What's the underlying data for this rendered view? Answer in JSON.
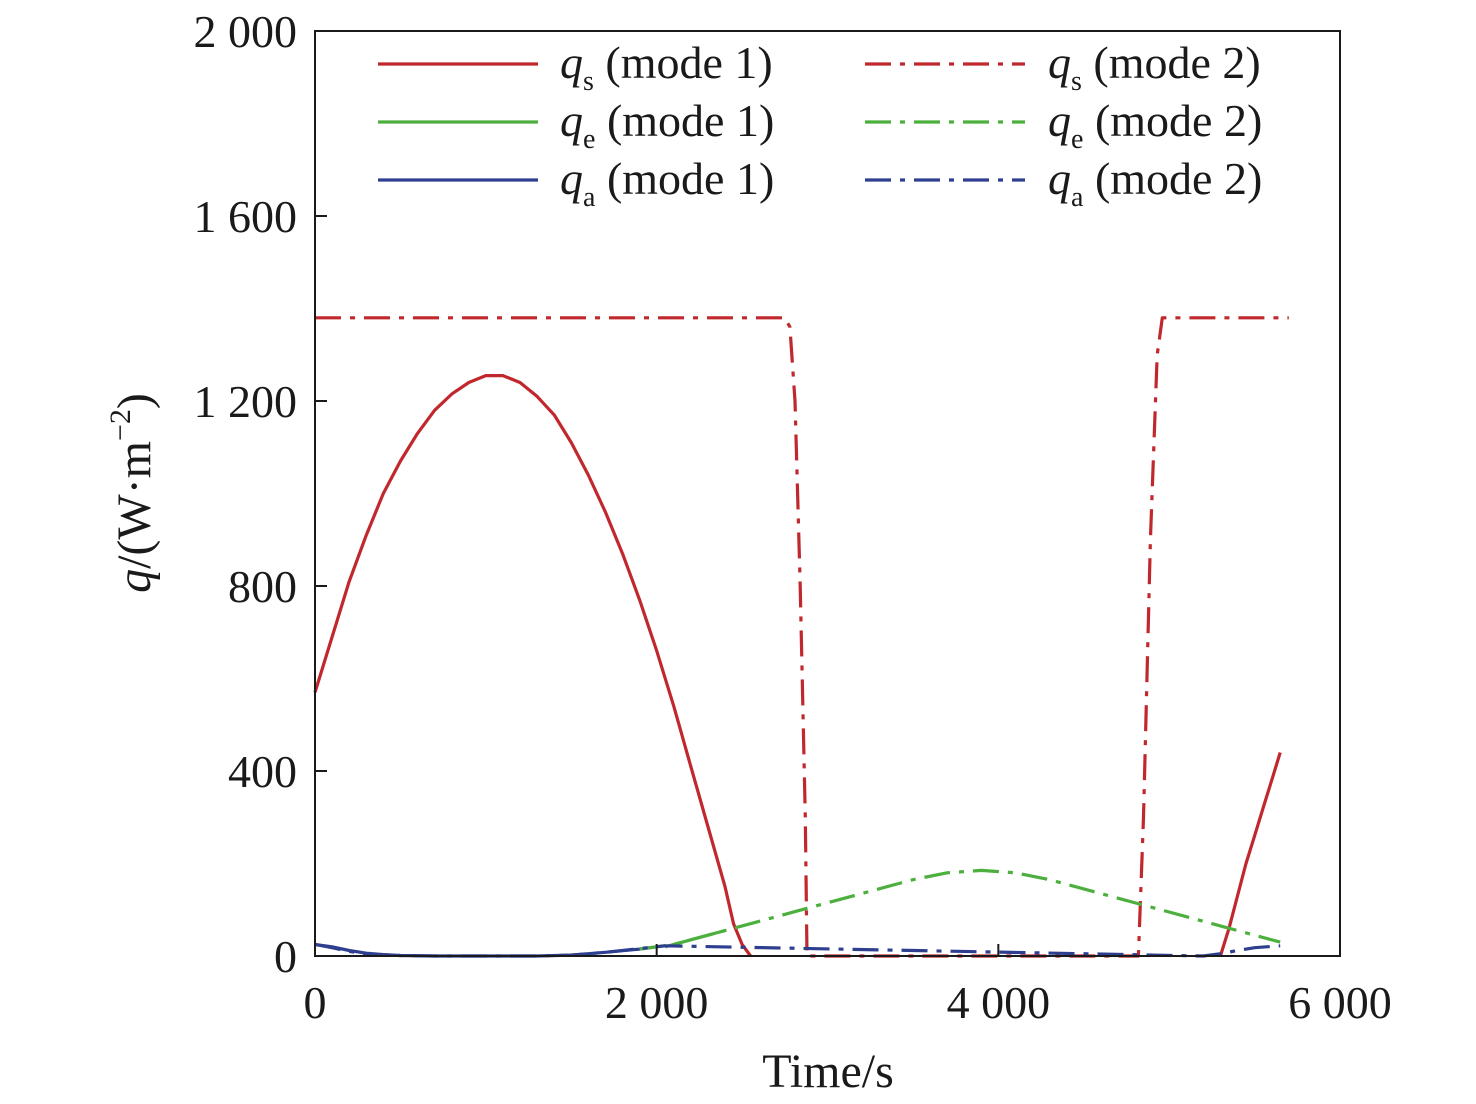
{
  "chart_data": {
    "type": "line",
    "title": "",
    "xlabel": "Time/s",
    "ylabel": {
      "symbol": "q",
      "rest": "/(W·m",
      "sup": "−2",
      "close": ")"
    },
    "xlim": [
      0,
      6000
    ],
    "ylim": [
      0,
      2000
    ],
    "x_ticks": [
      0,
      2000,
      4000,
      6000
    ],
    "x_tick_labels": [
      "0",
      "2 000",
      "4 000",
      "6 000"
    ],
    "y_ticks": [
      0,
      400,
      800,
      1200,
      1600,
      2000
    ],
    "y_tick_labels": [
      "0",
      "400",
      "800",
      "1 200",
      "1 600",
      "2 000"
    ],
    "grid": false,
    "legend_placement": "top",
    "series": [
      {
        "symbol": "q",
        "sub": "s",
        "tail": " (mode 1)",
        "color": "#c0282d",
        "style": "solid",
        "x": [
          0,
          100,
          200,
          300,
          400,
          500,
          600,
          700,
          800,
          900,
          1000,
          1100,
          1200,
          1300,
          1400,
          1500,
          1600,
          1700,
          1800,
          1900,
          2000,
          2100,
          2200,
          2300,
          2400,
          2450,
          2500,
          2550
        ],
        "y": [
          570,
          690,
          810,
          910,
          1000,
          1070,
          1130,
          1180,
          1215,
          1240,
          1255,
          1255,
          1240,
          1210,
          1170,
          1110,
          1040,
          960,
          870,
          770,
          660,
          540,
          410,
          280,
          150,
          70,
          25,
          0
        ]
      },
      {
        "symbol": "q",
        "sub": "s",
        "tail": " (mode 1)",
        "color": "#c0282d",
        "style": "solid",
        "x": [
          5300,
          5350,
          5400,
          5450,
          5500,
          5550,
          5600,
          5650
        ],
        "y": [
          0,
          60,
          130,
          200,
          260,
          320,
          380,
          440
        ]
      },
      {
        "symbol": "q",
        "sub": "e",
        "tail": " (mode 1)",
        "color": "#4caf3e",
        "style": "solid",
        "x": [
          2050,
          2200,
          2400
        ],
        "y": [
          20,
          35,
          55
        ]
      },
      {
        "symbol": "q",
        "sub": "a",
        "tail": " (mode 1)",
        "color": "#2f3f8f",
        "style": "solid",
        "x": [
          0,
          100,
          200,
          300,
          400,
          500,
          700,
          1000,
          1300,
          1500,
          1700,
          1900,
          2000
        ],
        "y": [
          25,
          20,
          12,
          6,
          3,
          1,
          0,
          0,
          0,
          2,
          8,
          15,
          20
        ]
      },
      {
        "symbol": "q",
        "sub": "s",
        "tail": " (mode 2)",
        "color": "#c0282d",
        "style": "dashdot",
        "x": [
          0,
          2750,
          2780,
          2810,
          2840,
          2870,
          2880,
          4820,
          4850,
          4890,
          4930,
          4960,
          5700
        ],
        "y": [
          1380,
          1380,
          1360,
          1200,
          800,
          300,
          0,
          0,
          300,
          900,
          1300,
          1380,
          1380
        ]
      },
      {
        "symbol": "q",
        "sub": "e",
        "tail": " (mode 2)",
        "color": "#4caf3e",
        "style": "dashdot",
        "x": [
          1900,
          2100,
          2300,
          2500,
          2700,
          2900,
          3100,
          3300,
          3500,
          3700,
          3900,
          4100,
          4300,
          4500,
          4700,
          4900,
          5100,
          5300,
          5500,
          5650
        ],
        "y": [
          15,
          25,
          45,
          65,
          85,
          105,
          125,
          145,
          165,
          180,
          185,
          180,
          165,
          145,
          125,
          105,
          85,
          65,
          45,
          30
        ]
      },
      {
        "symbol": "q",
        "sub": "a",
        "tail": " (mode 2)",
        "color": "#2f3f8f",
        "style": "dashdot",
        "x": [
          0,
          100,
          200,
          300,
          500,
          700,
          1000,
          1300,
          1500,
          1700,
          1900,
          2050,
          5200,
          5300,
          5400,
          5500,
          5650
        ],
        "y": [
          25,
          18,
          10,
          4,
          1,
          0,
          0,
          0,
          2,
          8,
          16,
          22,
          0,
          5,
          12,
          18,
          22
        ]
      }
    ],
    "legend": [
      {
        "symbol": "q",
        "sub": "s",
        "tail": " (mode 1)",
        "color": "#c0282d",
        "style": "solid"
      },
      {
        "symbol": "q",
        "sub": "s",
        "tail": " (mode 2)",
        "color": "#c0282d",
        "style": "dashdot"
      },
      {
        "symbol": "q",
        "sub": "e",
        "tail": " (mode 1)",
        "color": "#4caf3e",
        "style": "solid"
      },
      {
        "symbol": "q",
        "sub": "e",
        "tail": " (mode 2)",
        "color": "#4caf3e",
        "style": "dashdot"
      },
      {
        "symbol": "q",
        "sub": "a",
        "tail": " (mode 1)",
        "color": "#2f3f8f",
        "style": "solid"
      },
      {
        "symbol": "q",
        "sub": "a",
        "tail": " (mode 2)",
        "color": "#2f3f8f",
        "style": "dashdot"
      }
    ]
  }
}
